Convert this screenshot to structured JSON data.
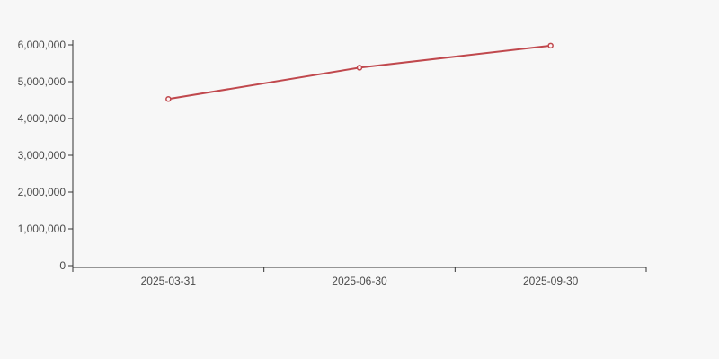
{
  "page": {
    "background_color": "#f7f7f7"
  },
  "chart_data": {
    "type": "line",
    "title": "",
    "xlabel": "",
    "ylabel": "",
    "categories": [
      "2025-03-31",
      "2025-06-30",
      "2025-09-30"
    ],
    "series": [
      {
        "name": "series-1",
        "values": [
          4530000,
          5380000,
          5980000
        ],
        "color": "#c0484d",
        "line_width": 2,
        "marker": "hollow-circle",
        "marker_fill": "#fdf4f4",
        "marker_radius": 2.5
      }
    ],
    "ylim": [
      0,
      6000000
    ],
    "y_tick_interval": 1000000,
    "y_tick_labels": [
      "0",
      "1,000,000",
      "2,000,000",
      "3,000,000",
      "4,000,000",
      "5,000,000",
      "6,000,000"
    ],
    "grid": false,
    "legend": "none",
    "axis_color": "#333333",
    "tick_label_color": "#4a4a4a"
  }
}
